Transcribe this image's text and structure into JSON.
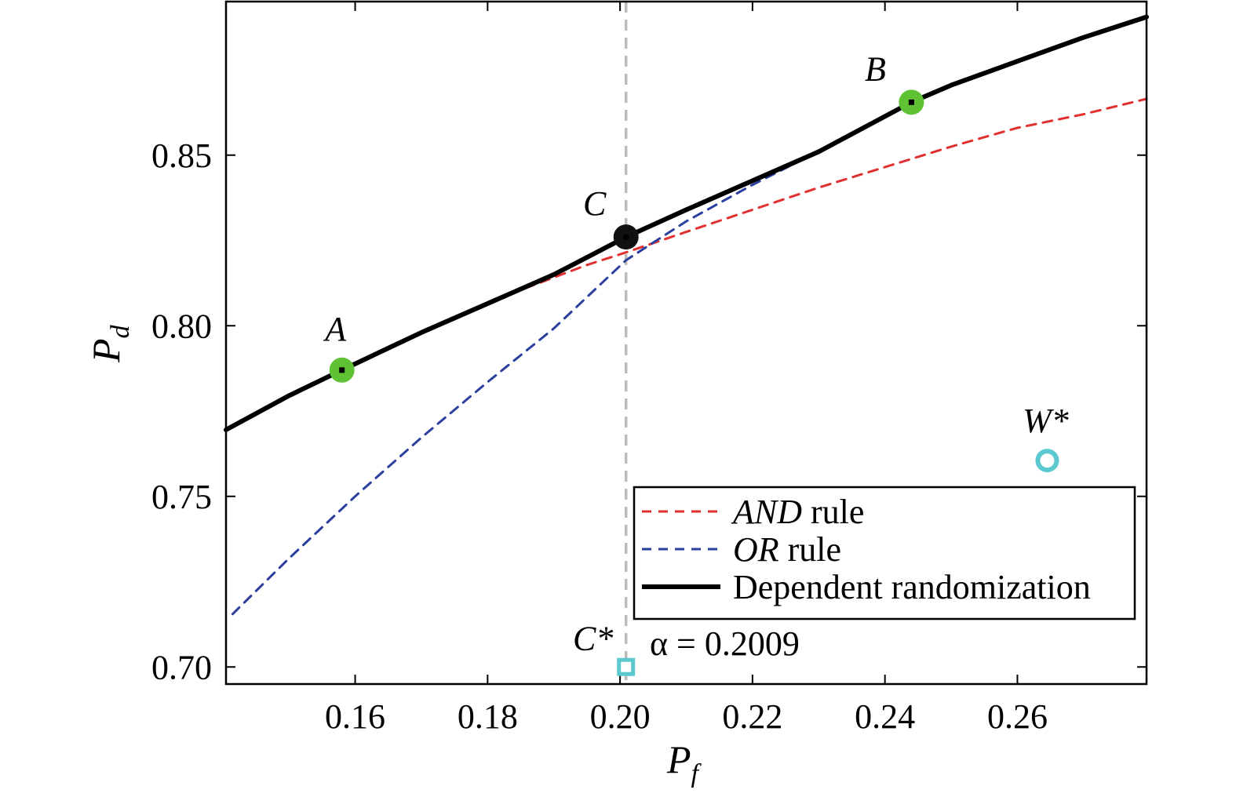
{
  "chart_data": {
    "type": "line",
    "title": "",
    "xlabel": {
      "main": "P",
      "sub": "f"
    },
    "ylabel": {
      "main": "P",
      "sub": "d"
    },
    "xlim": [
      0.1405,
      0.2795
    ],
    "ylim": [
      0.695,
      0.895
    ],
    "xticks": [
      0.16,
      0.18,
      0.2,
      0.22,
      0.24,
      0.26
    ],
    "xtick_labels": [
      "0.16",
      "0.18",
      "0.20",
      "0.22",
      "0.24",
      "0.26"
    ],
    "yticks": [
      0.7,
      0.75,
      0.8,
      0.85
    ],
    "ytick_labels": [
      "0.70",
      "0.75",
      "0.80",
      "0.85"
    ],
    "grid": false,
    "legend_position": "bottom-right",
    "series": [
      {
        "name": "AND rule",
        "name_italic": "AND",
        "name_rest": " rule",
        "color": "#e03030",
        "style": "dashed",
        "x": [
          0.1765,
          0.185,
          0.195,
          0.2009,
          0.21,
          0.22,
          0.23,
          0.24,
          0.25,
          0.26,
          0.27,
          0.2795
        ],
        "y": [
          0.8035,
          0.8105,
          0.8178,
          0.8215,
          0.8275,
          0.834,
          0.8405,
          0.8465,
          0.8525,
          0.858,
          0.862,
          0.8665
        ]
      },
      {
        "name": "OR rule",
        "name_italic": "OR",
        "name_rest": " rule",
        "color": "#2a3f9e",
        "style": "dashed",
        "x": [
          0.1415,
          0.15,
          0.16,
          0.17,
          0.18,
          0.19,
          0.2009,
          0.21,
          0.22,
          0.23
        ],
        "y": [
          0.7155,
          0.7318,
          0.75,
          0.7672,
          0.7835,
          0.7992,
          0.8192,
          0.8306,
          0.8413,
          0.8511
        ]
      },
      {
        "name": "Dependent randomization",
        "name_italic": "",
        "name_rest": "Dependent randomization",
        "color": "#000000",
        "style": "solid",
        "x": [
          0.1405,
          0.15,
          0.158,
          0.17,
          0.18,
          0.19,
          0.2009,
          0.21,
          0.22,
          0.23,
          0.244,
          0.25,
          0.26,
          0.27,
          0.2795
        ],
        "y": [
          0.7695,
          0.7795,
          0.787,
          0.798,
          0.8065,
          0.815,
          0.826,
          0.834,
          0.8425,
          0.851,
          0.8655,
          0.8705,
          0.8775,
          0.8845,
          0.8905
        ]
      }
    ],
    "reference_line": {
      "x": 0.2009,
      "color": "#bbbbbb",
      "style": "dashed"
    },
    "points": [
      {
        "label": "A",
        "x": 0.158,
        "y": 0.787,
        "kind": "circle",
        "color": "#5ec234"
      },
      {
        "label": "B",
        "x": 0.244,
        "y": 0.8655,
        "kind": "circle",
        "color": "#5ec234"
      },
      {
        "label": "C",
        "x": 0.2009,
        "y": 0.826,
        "kind": "circle",
        "color": "#111111"
      },
      {
        "label": "C*",
        "x": 0.2009,
        "y": 0.7,
        "kind": "square",
        "color": "#5bc9cf"
      },
      {
        "label": "W*",
        "x": 0.2645,
        "y": 0.7605,
        "kind": "ring",
        "color": "#5bc9cf"
      }
    ],
    "annotations": [
      {
        "text": "α = 0.2009"
      }
    ]
  }
}
